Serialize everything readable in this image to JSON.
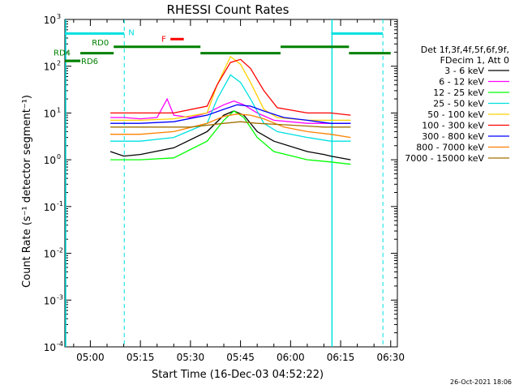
{
  "title": "RHESSI Count Rates",
  "footer_timestamp": "26-Oct-2021 18:06",
  "colors": {
    "axes": "#000000",
    "attenuator_flag": "#00e0e0",
    "decimation_flag": "#008000",
    "flare_flag": "#ff0000"
  },
  "chart_data": {
    "type": "line",
    "title": "RHESSI Count Rates",
    "xlabel": "Start Time (16-Dec-03 04:52:22)",
    "ylabel": "Count Rate (s⁻¹ detector segment⁻¹)",
    "yscale": "log",
    "xlim": [
      "04:52:22",
      "06:32:00"
    ],
    "ylim": [
      0.0001,
      1000
    ],
    "x_ticks": [
      "05:00",
      "05:15",
      "05:30",
      "05:45",
      "06:00",
      "06:15",
      "06:30"
    ],
    "y_ticks": [
      {
        "value": 1000,
        "label": "10",
        "exp": "3"
      },
      {
        "value": 100,
        "label": "10",
        "exp": "2"
      },
      {
        "value": 10,
        "label": "10",
        "exp": "1"
      },
      {
        "value": 1,
        "label": "10",
        "exp": "0"
      },
      {
        "value": 0.1,
        "label": "10",
        "exp": "-1"
      },
      {
        "value": 0.01,
        "label": "10",
        "exp": "-2"
      },
      {
        "value": 0.001,
        "label": "10",
        "exp": "-3"
      },
      {
        "value": 0.0001,
        "label": "10",
        "exp": "-4"
      }
    ],
    "legend_header": [
      "Det 1f,3f,4f,5f,6f,9f,",
      "FDecim 1, Att 0"
    ],
    "legend_position": "right",
    "series": [
      {
        "name": "3 - 6 keV",
        "color": "#000000",
        "x": [
          "05:06",
          "05:10",
          "05:15",
          "05:25",
          "05:35",
          "05:40",
          "05:43",
          "05:46",
          "05:50",
          "05:55",
          "06:05",
          "06:10",
          "06:12",
          "06:18"
        ],
        "y": [
          1.5,
          1.2,
          1.3,
          1.8,
          4,
          9,
          11,
          9,
          4,
          2.5,
          1.5,
          1.3,
          1.2,
          1
        ]
      },
      {
        "name": "6 - 12 keV",
        "color": "#ff00ff",
        "x": [
          "05:06",
          "05:10",
          "05:15",
          "05:20",
          "05:23",
          "05:25",
          "05:30",
          "05:35",
          "05:40",
          "05:43",
          "05:46",
          "05:50",
          "05:55",
          "06:05",
          "06:12",
          "06:18"
        ],
        "y": [
          8,
          8,
          7.5,
          8,
          20,
          9,
          8,
          10,
          15,
          18,
          15,
          10,
          7,
          6,
          6,
          6
        ]
      },
      {
        "name": "12 - 25 keV",
        "color": "#00ff00",
        "x": [
          "05:06",
          "05:10",
          "05:15",
          "05:25",
          "05:35",
          "05:40",
          "05:43",
          "05:46",
          "05:50",
          "05:55",
          "06:05",
          "06:12",
          "06:18"
        ],
        "y": [
          1,
          1,
          1,
          1.1,
          2.5,
          7,
          11,
          8,
          3,
          1.5,
          1,
          0.9,
          0.8
        ]
      },
      {
        "name": "25 - 50 keV",
        "color": "#00e0e0",
        "x": [
          "05:06",
          "05:10",
          "05:15",
          "05:25",
          "05:35",
          "05:38",
          "05:42",
          "05:45",
          "05:48",
          "05:52",
          "05:56",
          "06:05",
          "06:12",
          "06:18"
        ],
        "y": [
          2.5,
          2.5,
          2.5,
          3,
          6,
          20,
          65,
          45,
          20,
          6,
          4,
          3,
          2.5,
          2.5
        ]
      },
      {
        "name": "50 - 100 keV",
        "color": "#ffd000",
        "x": [
          "05:06",
          "05:10",
          "05:15",
          "05:25",
          "05:35",
          "05:38",
          "05:42",
          "05:45",
          "05:48",
          "05:52",
          "05:56",
          "06:05",
          "06:12",
          "06:18"
        ],
        "y": [
          7,
          7,
          7,
          7.5,
          10,
          40,
          160,
          110,
          45,
          12,
          8,
          7,
          7,
          7
        ]
      },
      {
        "name": "100 - 300 keV",
        "color": "#ff0000",
        "x": [
          "05:06",
          "05:10",
          "05:15",
          "05:25",
          "05:35",
          "05:38",
          "05:42",
          "05:45",
          "05:48",
          "05:52",
          "05:56",
          "06:05",
          "06:12",
          "06:18"
        ],
        "y": [
          10,
          10,
          10,
          10,
          14,
          40,
          120,
          140,
          90,
          30,
          13,
          10,
          10,
          9
        ]
      },
      {
        "name": "300 - 800 keV",
        "color": "#0000ff",
        "x": [
          "05:06",
          "05:10",
          "05:15",
          "05:25",
          "05:35",
          "05:40",
          "05:44",
          "05:48",
          "05:52",
          "05:58",
          "06:05",
          "06:12",
          "06:18"
        ],
        "y": [
          6,
          6,
          6,
          6.5,
          9,
          12,
          15,
          14,
          11,
          8,
          7,
          6,
          6
        ]
      },
      {
        "name": "800 - 7000 keV",
        "color": "#ff8000",
        "x": [
          "05:06",
          "05:10",
          "05:15",
          "05:25",
          "05:35",
          "05:40",
          "05:44",
          "05:48",
          "05:52",
          "05:58",
          "06:05",
          "06:12",
          "06:18"
        ],
        "y": [
          3.5,
          3.5,
          3.5,
          4,
          6,
          8.5,
          9.5,
          9,
          7.5,
          5,
          4,
          3.5,
          3
        ]
      },
      {
        "name": "7000 - 15000 keV",
        "color": "#a07000",
        "x": [
          "05:06",
          "05:15",
          "05:30",
          "05:40",
          "05:45",
          "05:50",
          "06:00",
          "06:10",
          "06:18"
        ],
        "y": [
          5,
          5,
          5,
          6,
          6.5,
          6,
          5.5,
          5,
          5
        ]
      }
    ]
  },
  "flags": {
    "attenuator": [
      {
        "label": "",
        "x_start": "04:52:22",
        "x_end": "05:10:10",
        "y": 500
      },
      {
        "label": "N",
        "x_start": "05:10:10",
        "x_end": "05:10:10",
        "y": 500
      },
      {
        "label": "",
        "x_start": "06:12:10",
        "x_end": "06:27:40",
        "y": 500
      }
    ],
    "attenuator_dashed_times": [
      "05:10:10",
      "06:27:40"
    ],
    "attenuator_solid_times": [
      "04:52:22",
      "06:12:10"
    ],
    "flare": [
      {
        "label": "F",
        "x_start": "05:24:00",
        "x_end": "05:28:00",
        "y": 380
      }
    ],
    "decimation": [
      {
        "label": "RD4",
        "x_start": "04:52:22",
        "x_end": "04:57:00",
        "y": 130
      },
      {
        "label": "",
        "x_start": "04:57:00",
        "x_end": "05:07:00",
        "y": 190
      },
      {
        "label": "RD0",
        "x_start": "05:07:00",
        "x_end": "05:33:00",
        "y": 260
      },
      {
        "label": "",
        "x_start": "05:33:00",
        "x_end": "05:57:00",
        "y": 190
      },
      {
        "label": "",
        "x_start": "05:57:00",
        "x_end": "06:17:30",
        "y": 260
      },
      {
        "label": "",
        "x_start": "06:17:30",
        "x_end": "06:30:00",
        "y": 190
      },
      {
        "label": "RD6",
        "x_start": "04:52:22",
        "x_end": "04:57:00",
        "y": 130
      }
    ]
  }
}
